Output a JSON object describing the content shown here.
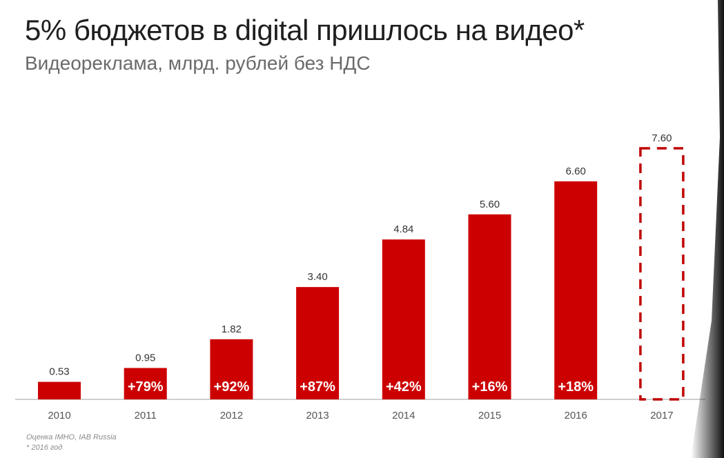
{
  "header": {
    "title": "5% бюджетов в digital пришлось на видео*",
    "subtitle": "Видеореклама, млрд. рублей без НДС"
  },
  "footer": {
    "source": "Оценка IMHO, IAB Russia",
    "footnote": "* 2016 год"
  },
  "colors": {
    "bar": "#cc0000",
    "forecast_outline": "#c00000",
    "axis": "#bfbfbf",
    "value_label": "#333333",
    "tick_label": "#555555",
    "growth_label": "#ffffff"
  },
  "chart_data": {
    "type": "bar",
    "categories": [
      "2010",
      "2011",
      "2012",
      "2013",
      "2014",
      "2015",
      "2016",
      "2017"
    ],
    "values": [
      0.53,
      0.95,
      1.82,
      3.4,
      4.84,
      5.6,
      6.6,
      7.6
    ],
    "value_labels": [
      "0.53",
      "0.95",
      "1.82",
      "3.40",
      "4.84",
      "5.60",
      "6.60",
      "7.60"
    ],
    "growth_labels": [
      "",
      "+79%",
      "+92%",
      "+87%",
      "+42%",
      "+16%",
      "+18%",
      ""
    ],
    "forecast": [
      false,
      false,
      false,
      false,
      false,
      false,
      false,
      true
    ],
    "ylim": [
      0,
      7.6
    ],
    "grid": false,
    "legend": "none"
  }
}
